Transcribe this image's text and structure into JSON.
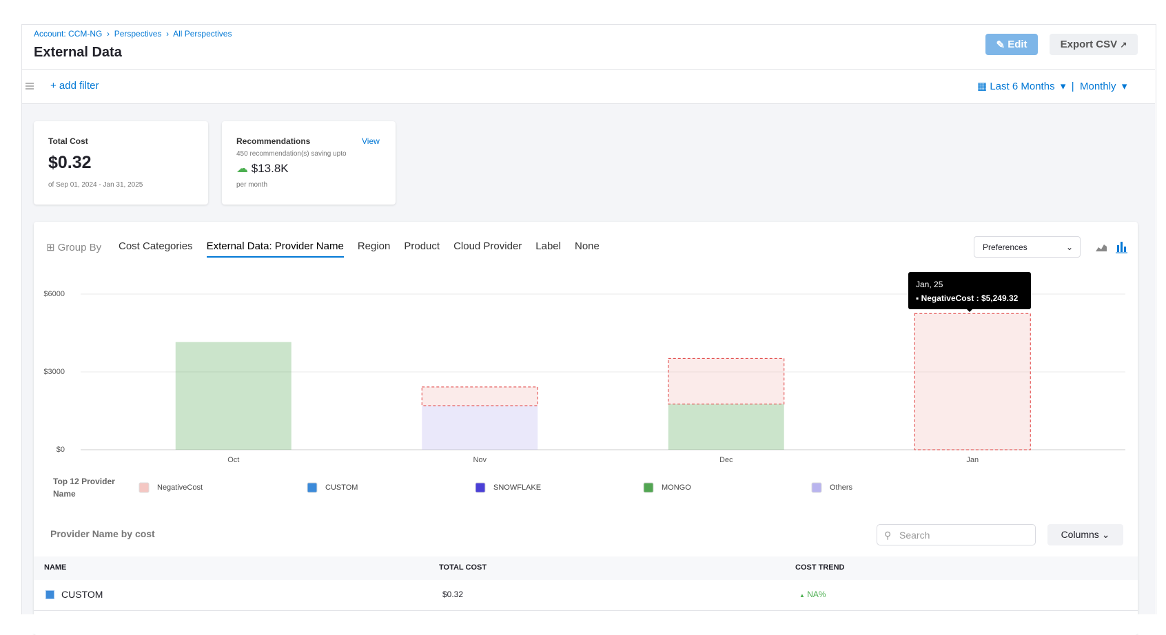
{
  "breadcrumbs": [
    "Account: CCM-NG",
    "Perspectives",
    "All Perspectives"
  ],
  "header": {
    "title": "External Data",
    "edit": "Edit",
    "export": "Export CSV"
  },
  "filter": {
    "add": "+ add filter",
    "range": "Last 6 Months",
    "granularity": "Monthly"
  },
  "cards": {
    "total": {
      "label": "Total Cost",
      "value": "$0.32",
      "period": "of Sep 01, 2024 - Jan 31, 2025"
    },
    "recommendations": {
      "label": "Recommendations",
      "link": "View",
      "note": "450 recommendation(s) saving upto",
      "value": "$13.8K",
      "unit": "per month"
    }
  },
  "group_by": {
    "label": "Group By",
    "options": [
      "Cost Categories",
      "External Data: Provider Name",
      "Region",
      "Product",
      "Cloud Provider",
      "Label",
      "None"
    ],
    "selected": "External Data: Provider Name",
    "preferences": "Preferences"
  },
  "chart_data": {
    "type": "bar",
    "stacked": true,
    "legend_title": "Top 12 Provider Name",
    "categories": [
      "Oct",
      "Nov",
      "Dec",
      "Jan"
    ],
    "series": [
      {
        "name": "NegativeCost",
        "color": "#f4c7c3",
        "values": [
          null,
          720,
          1760,
          5249.32
        ]
      },
      {
        "name": "CUSTOM",
        "color": "#3c8ad9",
        "values": [
          null,
          null,
          null,
          null
        ]
      },
      {
        "name": "SNOWFLAKE",
        "color": "#4a3fd6",
        "values": [
          null,
          null,
          null,
          null
        ]
      },
      {
        "name": "MONGO",
        "color": "#52a552",
        "values": [
          4150,
          null,
          1760,
          null
        ]
      },
      {
        "name": "Others",
        "color": "#b9b4ee",
        "values": [
          null,
          1700,
          null,
          null
        ]
      }
    ],
    "ylim": [
      0,
      6000
    ],
    "yticks": [
      {
        "value": 0,
        "label": "$0"
      },
      {
        "value": 3000,
        "label": "$3000"
      },
      {
        "value": 6000,
        "label": "$6000"
      }
    ],
    "grid": true,
    "tooltip": {
      "title": "Jan, 25",
      "text": "NegativeCost : $5,249.32"
    }
  },
  "table": {
    "title": "Provider Name by cost",
    "search": "Search",
    "columns_button": "Columns",
    "headers": [
      "NAME",
      "TOTAL COST",
      "COST TREND"
    ],
    "rows": [
      [
        "CUSTOM",
        "$0.32",
        "NA%"
      ]
    ]
  }
}
